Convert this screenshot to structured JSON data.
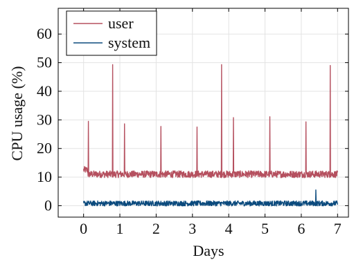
{
  "chart_data": {
    "type": "line",
    "xlabel": "Days",
    "ylabel": "CPU usage (%)",
    "xlim": [
      -0.7,
      7.3
    ],
    "ylim": [
      -4,
      69
    ],
    "x_ticks": [
      0,
      1,
      2,
      3,
      4,
      5,
      6,
      7
    ],
    "y_ticks": [
      0,
      10,
      20,
      30,
      40,
      50,
      60
    ],
    "grid": true,
    "legend": "top-left",
    "series": [
      {
        "name": "user",
        "color": "#b5505f",
        "baseline": 11,
        "noise": 1.2,
        "x_range": [
          0,
          7
        ],
        "spikes": [
          {
            "x": 0.13,
            "y": 29.5
          },
          {
            "x": 0.8,
            "y": 49.3
          },
          {
            "x": 1.13,
            "y": 28.6
          },
          {
            "x": 2.13,
            "y": 27.7
          },
          {
            "x": 3.13,
            "y": 27.5
          },
          {
            "x": 3.8,
            "y": 49.3
          },
          {
            "x": 4.13,
            "y": 30.8
          },
          {
            "x": 5.13,
            "y": 31.1
          },
          {
            "x": 6.13,
            "y": 29.3
          },
          {
            "x": 6.8,
            "y": 49.0
          }
        ]
      },
      {
        "name": "system",
        "color": "#0b4a7d",
        "baseline": 0.8,
        "noise": 0.9,
        "x_range": [
          0,
          7
        ],
        "spikes": [
          {
            "x": 6.4,
            "y": 5.5
          }
        ]
      }
    ]
  }
}
